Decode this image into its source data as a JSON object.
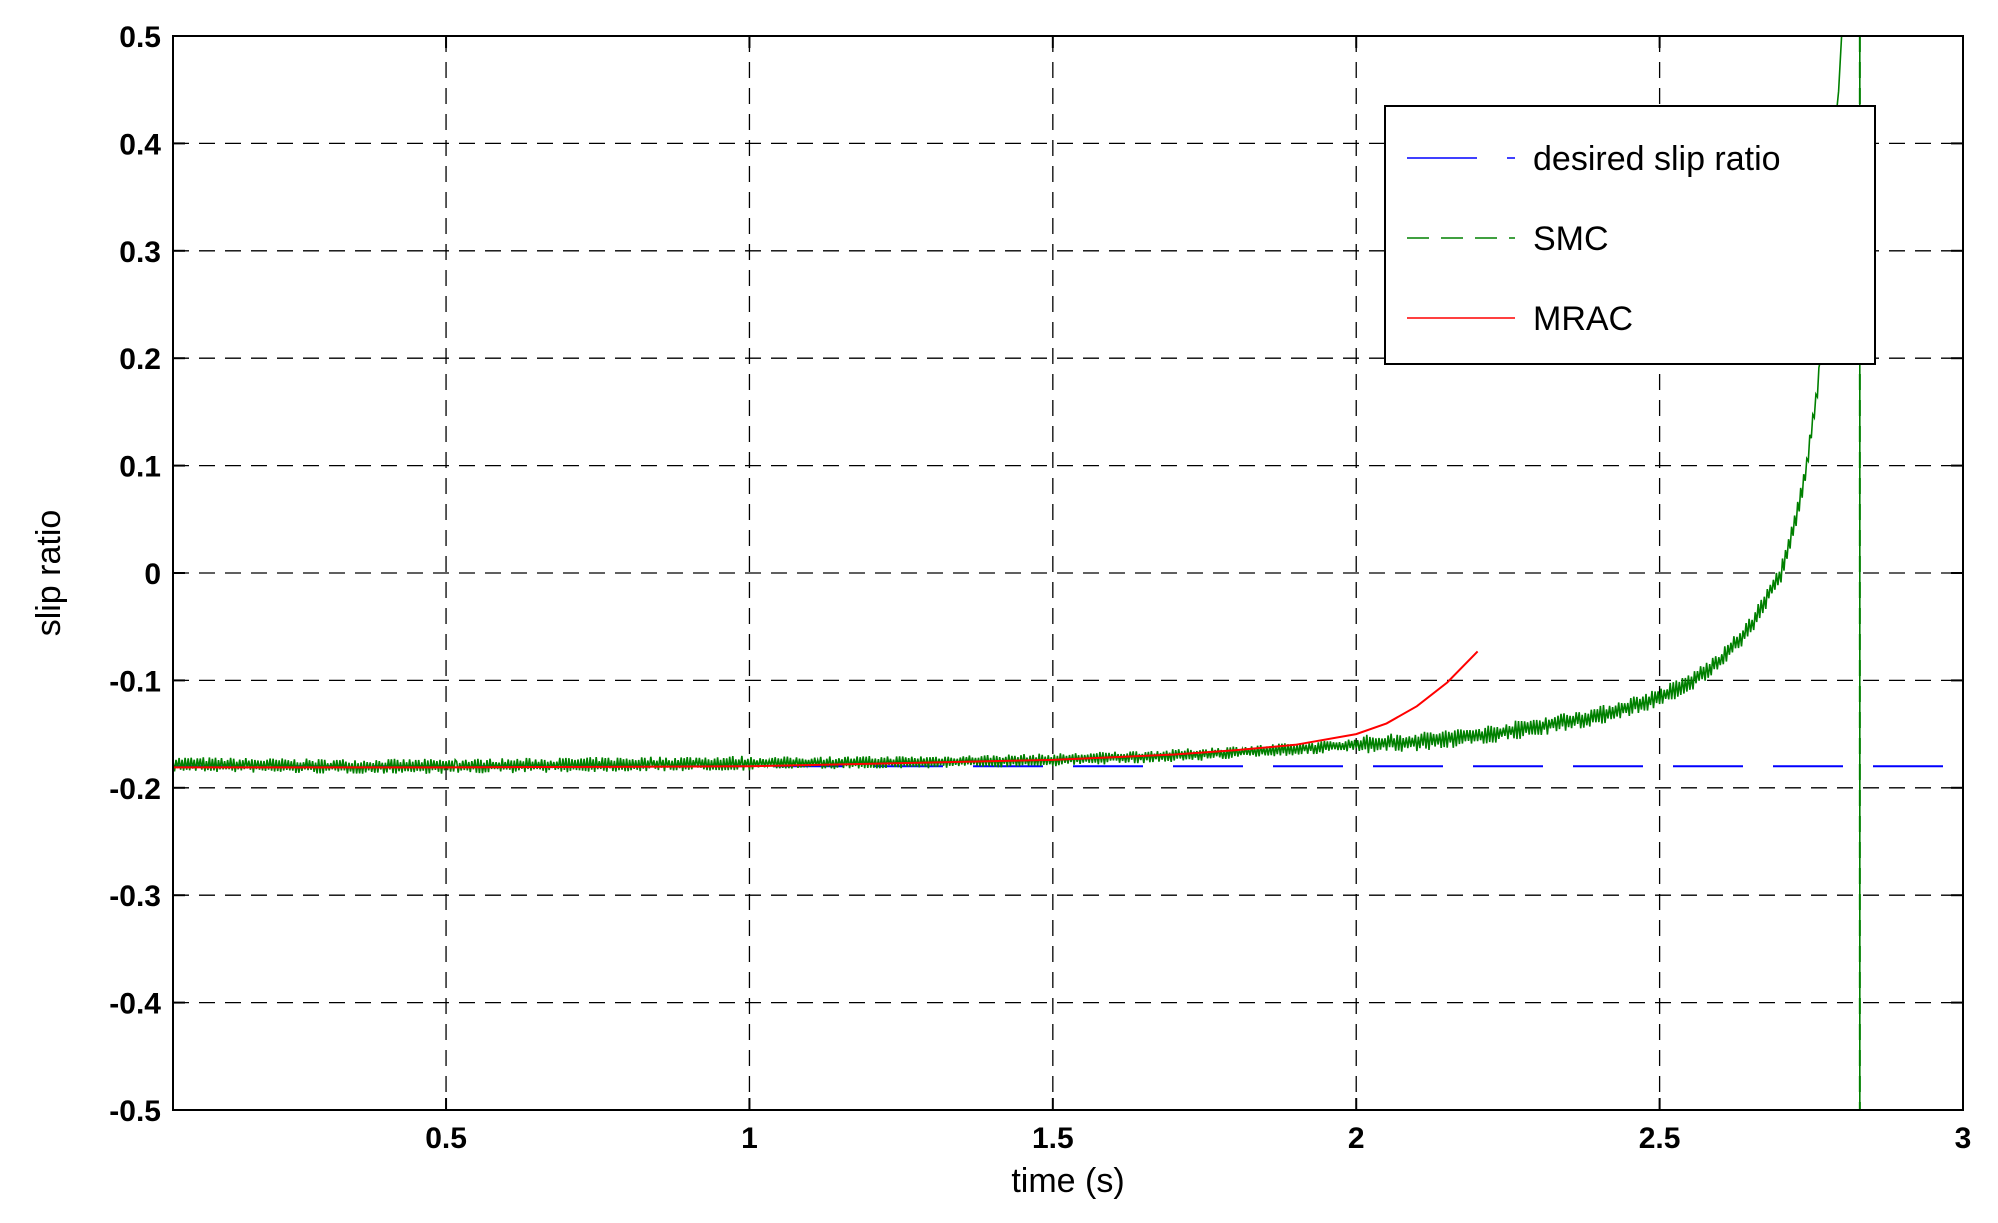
{
  "chart_data": {
    "type": "line",
    "title": "",
    "xlabel": "time (s)",
    "ylabel": "slip ratio",
    "xlim": [
      0.05,
      3.0
    ],
    "ylim": [
      -0.5,
      0.5
    ],
    "xticks": [
      0.5,
      1,
      1.5,
      2,
      2.5,
      3
    ],
    "xtick_labels": [
      "0.5",
      "1",
      "1.5",
      "2",
      "2.5",
      "3"
    ],
    "yticks": [
      -0.5,
      -0.4,
      -0.3,
      -0.2,
      -0.1,
      0,
      0.1,
      0.2,
      0.3,
      0.4,
      0.5
    ],
    "ytick_labels": [
      "-0.5",
      "-0.4",
      "-0.3",
      "-0.2",
      "-0.1",
      "0",
      "0.1",
      "0.2",
      "0.3",
      "0.4",
      "0.5"
    ],
    "grid": true,
    "legend": {
      "position": "top-right"
    },
    "series": [
      {
        "name": "desired slip ratio",
        "color": "#0000ff",
        "style": "dashed",
        "x": [
          0.05,
          3.0
        ],
        "y": [
          -0.18,
          -0.18
        ]
      },
      {
        "name": "SMC",
        "color": "#008000",
        "style": "dashed",
        "x": [
          0.05,
          0.3,
          0.5,
          0.8,
          1.0,
          1.3,
          1.5,
          1.7,
          1.8,
          1.9,
          2.0,
          2.1,
          2.2,
          2.3,
          2.4,
          2.5,
          2.55,
          2.6,
          2.65,
          2.7,
          2.72,
          2.74,
          2.76,
          2.78,
          2.8,
          2.81,
          2.83,
          2.83
        ],
        "y": [
          -0.178,
          -0.18,
          -0.18,
          -0.178,
          -0.177,
          -0.176,
          -0.174,
          -0.17,
          -0.167,
          -0.164,
          -0.16,
          -0.157,
          -0.152,
          -0.143,
          -0.133,
          -0.116,
          -0.102,
          -0.082,
          -0.05,
          0.0,
          0.04,
          0.09,
          0.17,
          0.31,
          0.5,
          0.5,
          0.5,
          -0.5
        ]
      },
      {
        "name": "MRAC",
        "color": "#ff0000",
        "style": "solid",
        "x": [
          0.05,
          0.5,
          1.0,
          1.5,
          1.7,
          1.8,
          1.9,
          2.0,
          2.05,
          2.1,
          2.15,
          2.2
        ],
        "y": [
          -0.181,
          -0.181,
          -0.18,
          -0.174,
          -0.169,
          -0.165,
          -0.16,
          -0.15,
          -0.14,
          -0.124,
          -0.102,
          -0.073
        ]
      }
    ]
  }
}
